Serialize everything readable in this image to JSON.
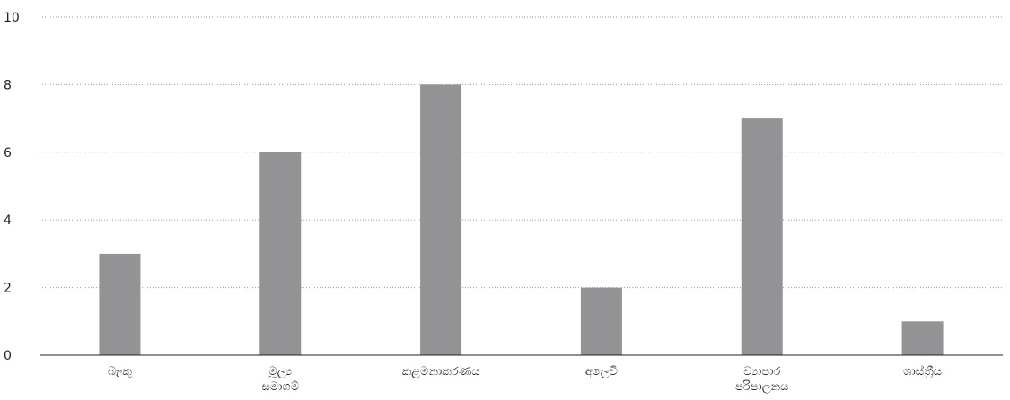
{
  "chart_data": {
    "type": "bar",
    "title": "",
    "xlabel": "",
    "ylabel": "",
    "categories": [
      [
        "බැංකු"
      ],
      [
        "මූල්‍ය",
        "සමාගම්"
      ],
      [
        "කළමනාකරණය"
      ],
      [
        "අලෙවි"
      ],
      [
        "ව්‍යාපාර",
        "පරිපාලනය"
      ],
      [
        "ශාස්ත්‍රීය"
      ]
    ],
    "values": [
      3,
      6,
      8,
      2,
      7,
      1
    ],
    "ylim": [
      0,
      10
    ],
    "yticks": [
      "0",
      "2",
      "4",
      "6",
      "8",
      "10"
    ],
    "grid": true,
    "legend": "none",
    "colors": {
      "bar": "#939395",
      "grid": "#9a9a9a",
      "axis": "#222222",
      "text": "#222222"
    }
  }
}
